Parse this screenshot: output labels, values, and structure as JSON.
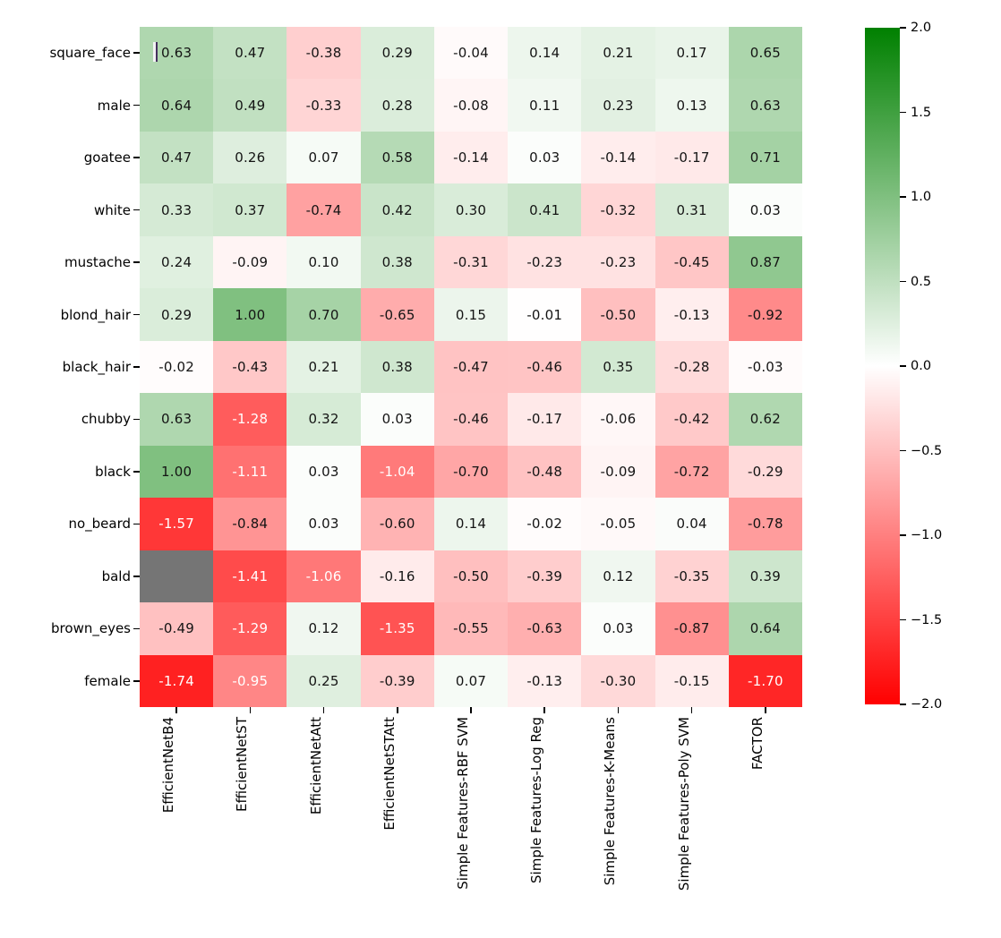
{
  "chart_data": {
    "type": "heatmap",
    "rows": [
      "square_face",
      "male",
      "goatee",
      "white",
      "mustache",
      "blond_hair",
      "black_hair",
      "chubby",
      "black",
      "no_beard",
      "bald",
      "brown_eyes",
      "female"
    ],
    "columns": [
      "EfficientNetB4",
      "EfficientNetST",
      "EfficientNetAtt",
      "EfficientNetSTAtt",
      "Simple Features-RBF SVM",
      "Simple Features-Log Reg",
      "Simple Features-K-Means",
      "Simple Features-Poly SVM",
      "FACTOR"
    ],
    "values": [
      [
        0.63,
        0.47,
        -0.38,
        0.29,
        -0.04,
        0.14,
        0.21,
        0.17,
        0.65
      ],
      [
        0.64,
        0.49,
        -0.33,
        0.28,
        -0.08,
        0.11,
        0.23,
        0.13,
        0.63
      ],
      [
        0.47,
        0.26,
        0.07,
        0.58,
        -0.14,
        0.03,
        -0.14,
        -0.17,
        0.71
      ],
      [
        0.33,
        0.37,
        -0.74,
        0.42,
        0.3,
        0.41,
        -0.32,
        0.31,
        0.03
      ],
      [
        0.24,
        -0.09,
        0.1,
        0.38,
        -0.31,
        -0.23,
        -0.23,
        -0.45,
        0.87
      ],
      [
        0.29,
        1.0,
        0.7,
        -0.65,
        0.15,
        -0.01,
        -0.5,
        -0.13,
        -0.92
      ],
      [
        -0.02,
        -0.43,
        0.21,
        0.38,
        -0.47,
        -0.46,
        0.35,
        -0.28,
        -0.03
      ],
      [
        0.63,
        -1.28,
        0.32,
        0.03,
        -0.46,
        -0.17,
        -0.06,
        -0.42,
        0.62
      ],
      [
        1.0,
        -1.11,
        0.03,
        -1.04,
        -0.7,
        -0.48,
        -0.09,
        -0.72,
        -0.29
      ],
      [
        -1.57,
        -0.84,
        0.03,
        -0.6,
        0.14,
        -0.02,
        -0.05,
        0.04,
        -0.78
      ],
      [
        null,
        -1.41,
        -1.06,
        -0.16,
        -0.5,
        -0.39,
        0.12,
        -0.35,
        0.39
      ],
      [
        -0.49,
        -1.29,
        0.12,
        -1.35,
        -0.55,
        -0.63,
        0.03,
        -0.87,
        0.64
      ],
      [
        -1.74,
        -0.95,
        0.25,
        -0.39,
        0.07,
        -0.13,
        -0.3,
        -0.15,
        -1.7
      ]
    ],
    "vmin": -2.0,
    "vmax": 2.0,
    "annotation_format": ".2f",
    "colorbar_ticks": [
      "2.0",
      "1.5",
      "1.0",
      "0.5",
      "0.0",
      "−0.5",
      "−1.0",
      "−1.5",
      "−2.0"
    ],
    "colormap": {
      "negative_color": "#ff0000",
      "zero_color": "#ffffff",
      "positive_color": "#008000",
      "nan_color": "#757575",
      "annotation_dark": "#141414",
      "annotation_light": "#ffffff"
    },
    "legend_position": "right",
    "grid": false
  }
}
